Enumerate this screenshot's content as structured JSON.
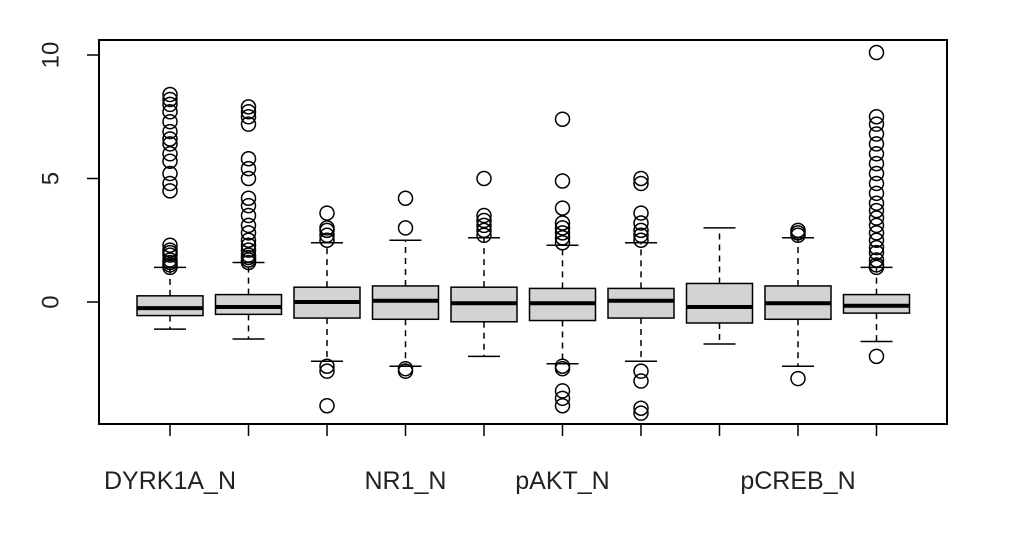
{
  "chart_data": {
    "type": "boxplot",
    "title": "",
    "xlabel": "",
    "ylabel": "",
    "ylim": [
      -5,
      10.6
    ],
    "yticks": [
      0,
      5,
      10
    ],
    "ytick_labels": [
      "0",
      "5",
      "10"
    ],
    "grid": false,
    "legend": "none",
    "box_fill": "#d3d3d3",
    "line_color": "#000000",
    "categories": [
      "DYRK1A_N",
      "",
      "",
      "NR1_N",
      "",
      "pAKT_N",
      "",
      "",
      "pCREB_N",
      ""
    ],
    "boxes": [
      {
        "whisker_low": -1.1,
        "q1": -0.55,
        "median": -0.25,
        "q3": 0.25,
        "whisker_high": 1.4,
        "outliers": [
          1.4,
          1.5,
          1.6,
          1.7,
          1.9,
          2.0,
          2.1,
          2.3,
          4.5,
          4.8,
          5.2,
          5.7,
          6.0,
          6.4,
          6.6,
          6.9,
          7.3,
          7.7,
          8.0,
          8.2,
          8.4
        ]
      },
      {
        "whisker_low": -1.5,
        "q1": -0.5,
        "median": -0.2,
        "q3": 0.3,
        "whisker_high": 1.6,
        "outliers": [
          1.6,
          1.7,
          1.8,
          1.9,
          2.1,
          2.3,
          2.5,
          2.8,
          3.1,
          3.5,
          3.9,
          4.2,
          5.0,
          5.4,
          5.8,
          7.2,
          7.5,
          7.7,
          7.9
        ]
      },
      {
        "whisker_low": -2.4,
        "q1": -0.65,
        "median": 0.0,
        "q3": 0.6,
        "whisker_high": 2.4,
        "outliers": [
          2.5,
          2.7,
          2.9,
          3.0,
          3.6,
          -2.6,
          -2.8,
          -4.2
        ]
      },
      {
        "whisker_low": -2.6,
        "q1": -0.7,
        "median": 0.05,
        "q3": 0.65,
        "whisker_high": 2.5,
        "outliers": [
          3.0,
          4.2,
          -2.7,
          -2.8
        ]
      },
      {
        "whisker_low": -2.2,
        "q1": -0.8,
        "median": -0.05,
        "q3": 0.6,
        "whisker_high": 2.6,
        "outliers": [
          2.7,
          2.9,
          3.1,
          3.3,
          3.5,
          5.0
        ]
      },
      {
        "whisker_low": -2.5,
        "q1": -0.75,
        "median": -0.05,
        "q3": 0.55,
        "whisker_high": 2.3,
        "outliers": [
          2.4,
          2.6,
          2.8,
          3.0,
          3.2,
          3.8,
          4.9,
          7.4,
          -2.6,
          -2.7,
          -3.6,
          -3.9,
          -4.2
        ]
      },
      {
        "whisker_low": -2.4,
        "q1": -0.65,
        "median": 0.05,
        "q3": 0.55,
        "whisker_high": 2.4,
        "outliers": [
          2.5,
          2.7,
          2.9,
          3.2,
          3.6,
          4.8,
          5.0,
          -2.8,
          -3.2,
          -4.3,
          -4.5
        ]
      },
      {
        "whisker_low": -1.7,
        "q1": -0.85,
        "median": -0.2,
        "q3": 0.75,
        "whisker_high": 3.0,
        "outliers": []
      },
      {
        "whisker_low": -2.6,
        "q1": -0.7,
        "median": -0.05,
        "q3": 0.65,
        "whisker_high": 2.6,
        "outliers": [
          2.7,
          2.8,
          2.9,
          -3.1
        ]
      },
      {
        "whisker_low": -1.6,
        "q1": -0.45,
        "median": -0.15,
        "q3": 0.3,
        "whisker_high": 1.4,
        "outliers": [
          1.4,
          1.5,
          1.7,
          2.0,
          2.2,
          2.5,
          2.8,
          3.1,
          3.4,
          3.7,
          4.0,
          4.4,
          4.8,
          5.2,
          5.6,
          6.0,
          6.4,
          6.8,
          7.2,
          7.5,
          10.1,
          -2.2
        ]
      }
    ]
  }
}
